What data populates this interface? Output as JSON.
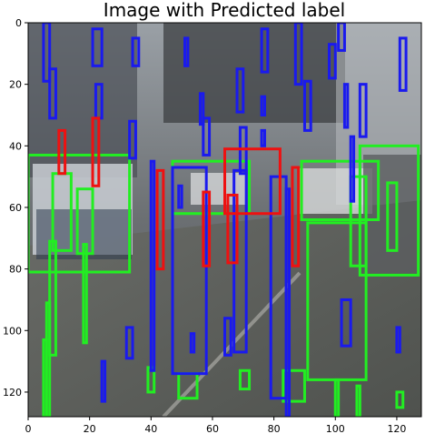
{
  "chart_data": {
    "type": "image",
    "title": "Image with Predicted label",
    "xlim": [
      0,
      128
    ],
    "ylim": [
      0,
      128
    ],
    "y_inverted": true,
    "x_ticks": [
      0,
      20,
      40,
      60,
      80,
      100,
      120
    ],
    "y_ticks": [
      0,
      20,
      40,
      60,
      80,
      100,
      120
    ],
    "x_tick_labels": [
      "0",
      "20",
      "40",
      "60",
      "80",
      "100",
      "120"
    ],
    "y_tick_labels": [
      "0",
      "20",
      "40",
      "60",
      "80",
      "100",
      "120"
    ],
    "series_colors": {
      "green": "#22ee22",
      "blue": "#1a1aee",
      "red": "#ee1111"
    },
    "boxes": [
      {
        "color": "green",
        "x0": 0,
        "y0": 43,
        "x1": 33,
        "y1": 81
      },
      {
        "color": "green",
        "x0": 8,
        "y0": 49,
        "x1": 14,
        "y1": 74
      },
      {
        "color": "green",
        "x0": 16,
        "y0": 54,
        "x1": 21,
        "y1": 75
      },
      {
        "color": "green",
        "x0": 47,
        "y0": 45,
        "x1": 72,
        "y1": 62
      },
      {
        "color": "green",
        "x0": 89,
        "y0": 45,
        "x1": 114,
        "y1": 64
      },
      {
        "color": "green",
        "x0": 91,
        "y0": 65,
        "x1": 110,
        "y1": 116
      },
      {
        "color": "green",
        "x0": 105,
        "y0": 50,
        "x1": 110,
        "y1": 79
      },
      {
        "color": "green",
        "x0": 108,
        "y0": 40,
        "x1": 127,
        "y1": 82
      },
      {
        "color": "green",
        "x0": 117,
        "y0": 52,
        "x1": 120,
        "y1": 74
      },
      {
        "color": "green",
        "x0": 49,
        "y0": 114,
        "x1": 55,
        "y1": 122
      },
      {
        "color": "green",
        "x0": 39,
        "y0": 112,
        "x1": 41,
        "y1": 120
      },
      {
        "color": "green",
        "x0": 69,
        "y0": 113,
        "x1": 72,
        "y1": 119
      },
      {
        "color": "green",
        "x0": 83,
        "y0": 113,
        "x1": 90,
        "y1": 123
      },
      {
        "color": "green",
        "x0": 7,
        "y0": 71,
        "x1": 9,
        "y1": 108
      },
      {
        "color": "green",
        "x0": 18,
        "y0": 72,
        "x1": 19,
        "y1": 104
      },
      {
        "color": "green",
        "x0": 6,
        "y0": 91,
        "x1": 7,
        "y1": 128
      },
      {
        "color": "green",
        "x0": 5,
        "y0": 103,
        "x1": 6,
        "y1": 128
      },
      {
        "color": "green",
        "x0": 100,
        "y0": 116,
        "x1": 101,
        "y1": 128
      },
      {
        "color": "green",
        "x0": 107,
        "y0": 118,
        "x1": 108,
        "y1": 128
      },
      {
        "color": "green",
        "x0": 120,
        "y0": 120,
        "x1": 122,
        "y1": 125
      },
      {
        "color": "blue",
        "x0": 5,
        "y0": 0,
        "x1": 7,
        "y1": 19
      },
      {
        "color": "blue",
        "x0": 7,
        "y0": 15,
        "x1": 9,
        "y1": 31
      },
      {
        "color": "blue",
        "x0": 21,
        "y0": 2,
        "x1": 24,
        "y1": 14
      },
      {
        "color": "blue",
        "x0": 22,
        "y0": 20,
        "x1": 24,
        "y1": 31
      },
      {
        "color": "blue",
        "x0": 34,
        "y0": 5,
        "x1": 36,
        "y1": 14
      },
      {
        "color": "blue",
        "x0": 33,
        "y0": 32,
        "x1": 35,
        "y1": 44
      },
      {
        "color": "blue",
        "x0": 51,
        "y0": 5,
        "x1": 52,
        "y1": 14
      },
      {
        "color": "blue",
        "x0": 56,
        "y0": 23,
        "x1": 57,
        "y1": 33
      },
      {
        "color": "blue",
        "x0": 57,
        "y0": 31,
        "x1": 59,
        "y1": 43
      },
      {
        "color": "blue",
        "x0": 68,
        "y0": 15,
        "x1": 70,
        "y1": 29
      },
      {
        "color": "blue",
        "x0": 69,
        "y0": 34,
        "x1": 71,
        "y1": 49
      },
      {
        "color": "blue",
        "x0": 76,
        "y0": 24,
        "x1": 77,
        "y1": 30
      },
      {
        "color": "blue",
        "x0": 76,
        "y0": 35,
        "x1": 77,
        "y1": 40
      },
      {
        "color": "blue",
        "x0": 76,
        "y0": 2,
        "x1": 78,
        "y1": 16
      },
      {
        "color": "blue",
        "x0": 87,
        "y0": 0,
        "x1": 89,
        "y1": 20
      },
      {
        "color": "blue",
        "x0": 90,
        "y0": 19,
        "x1": 92,
        "y1": 35
      },
      {
        "color": "blue",
        "x0": 98,
        "y0": 7,
        "x1": 100,
        "y1": 18
      },
      {
        "color": "blue",
        "x0": 103,
        "y0": 20,
        "x1": 104,
        "y1": 34
      },
      {
        "color": "blue",
        "x0": 108,
        "y0": 20,
        "x1": 110,
        "y1": 37
      },
      {
        "color": "blue",
        "x0": 121,
        "y0": 5,
        "x1": 123,
        "y1": 22
      },
      {
        "color": "blue",
        "x0": 101,
        "y0": 0,
        "x1": 103,
        "y1": 9
      },
      {
        "color": "blue",
        "x0": 47,
        "y0": 47,
        "x1": 58,
        "y1": 114
      },
      {
        "color": "blue",
        "x0": 67,
        "y0": 48,
        "x1": 71,
        "y1": 107
      },
      {
        "color": "blue",
        "x0": 79,
        "y0": 50,
        "x1": 84,
        "y1": 122
      },
      {
        "color": "blue",
        "x0": 84,
        "y0": 54,
        "x1": 85,
        "y1": 128
      },
      {
        "color": "blue",
        "x0": 64,
        "y0": 96,
        "x1": 66,
        "y1": 108
      },
      {
        "color": "blue",
        "x0": 32,
        "y0": 99,
        "x1": 34,
        "y1": 109
      },
      {
        "color": "blue",
        "x0": 102,
        "y0": 90,
        "x1": 105,
        "y1": 105
      },
      {
        "color": "blue",
        "x0": 105,
        "y0": 37,
        "x1": 106,
        "y1": 58
      },
      {
        "color": "blue",
        "x0": 40,
        "y0": 45,
        "x1": 41,
        "y1": 113
      },
      {
        "color": "blue",
        "x0": 53,
        "y0": 101,
        "x1": 54,
        "y1": 107
      },
      {
        "color": "blue",
        "x0": 24,
        "y0": 110,
        "x1": 25,
        "y1": 123
      },
      {
        "color": "blue",
        "x0": 120,
        "y0": 99,
        "x1": 121,
        "y1": 107
      },
      {
        "color": "blue",
        "x0": 49,
        "y0": 53,
        "x1": 50,
        "y1": 60
      },
      {
        "color": "red",
        "x0": 10,
        "y0": 35,
        "x1": 12,
        "y1": 49
      },
      {
        "color": "red",
        "x0": 21,
        "y0": 31,
        "x1": 23,
        "y1": 53
      },
      {
        "color": "red",
        "x0": 42,
        "y0": 48,
        "x1": 44,
        "y1": 80
      },
      {
        "color": "red",
        "x0": 64,
        "y0": 41,
        "x1": 82,
        "y1": 62
      },
      {
        "color": "red",
        "x0": 65,
        "y0": 56,
        "x1": 68,
        "y1": 78
      },
      {
        "color": "red",
        "x0": 57,
        "y0": 55,
        "x1": 59,
        "y1": 79
      },
      {
        "color": "red",
        "x0": 86,
        "y0": 47,
        "x1": 88,
        "y1": 79
      }
    ]
  }
}
